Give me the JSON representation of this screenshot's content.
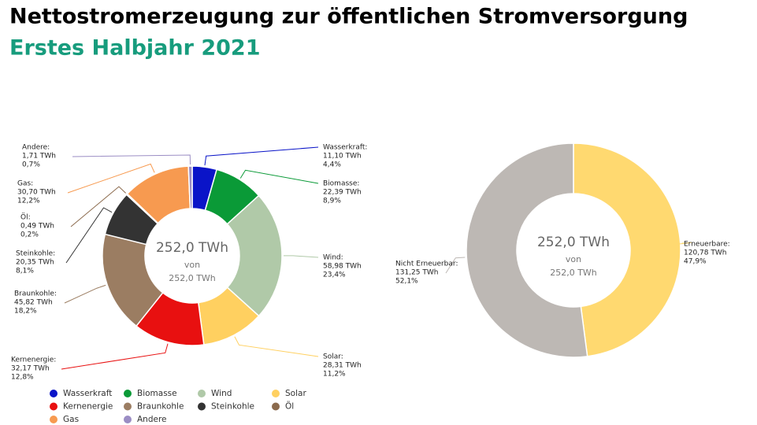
{
  "header": {
    "title": "Nettostromerzeugung zur öffentlichen Stromversorgung",
    "subtitle": "Erstes Halbjahr 2021"
  },
  "chart_data": [
    {
      "type": "donut",
      "categories": [
        "Wasserkraft",
        "Biomasse",
        "Wind",
        "Solar",
        "Kernenergie",
        "Braunkohle",
        "Steinkohle",
        "Öl",
        "Gas",
        "Andere"
      ],
      "callout_labels": [
        "Wasserkraft:",
        "Biomasse:",
        "Wind:",
        "Solar:",
        "Kernenergie:",
        "Braunkohle:",
        "Steinkohle:",
        "Öl:",
        "Gas:",
        "Andere:"
      ],
      "values": [
        11.1,
        22.39,
        58.98,
        28.31,
        32.17,
        45.82,
        20.35,
        0.49,
        30.7,
        1.71
      ],
      "value_labels": [
        "11,10 TWh",
        "22,39 TWh",
        "58,98 TWh",
        "28,31 TWh",
        "32,17 TWh",
        "45,82 TWh",
        "20,35 TWh",
        "0,49 TWh",
        "30,70 TWh",
        "1,71 TWh"
      ],
      "percents": [
        4.4,
        8.9,
        23.4,
        11.2,
        12.8,
        18.2,
        8.1,
        0.2,
        12.2,
        0.7
      ],
      "percent_labels": [
        "4,4%",
        "8,9%",
        "23,4%",
        "11,2%",
        "12,8%",
        "18,2%",
        "8,1%",
        "0,2%",
        "12,2%",
        "0,7%"
      ],
      "colors": [
        "#0a14c8",
        "#0a9a37",
        "#b0c9a8",
        "#ffd060",
        "#e81010",
        "#9b7d62",
        "#333333",
        "#8b6a4d",
        "#f79a50",
        "#9b8dc4"
      ],
      "center_value": "252,0 TWh",
      "center_of": "von",
      "center_total": "252,0 TWh",
      "legend": true
    },
    {
      "type": "donut",
      "categories": [
        "Erneuerbare:",
        "Nicht Erneuerbar:"
      ],
      "values": [
        120.78,
        131.25
      ],
      "value_labels": [
        "120,78 TWh",
        "131,25 TWh"
      ],
      "percents": [
        47.9,
        52.1
      ],
      "percent_labels": [
        "47,9%",
        "52,1%"
      ],
      "colors": [
        "#ffd970",
        "#bdb8b4"
      ],
      "center_value": "252,0 TWh",
      "center_of": "von",
      "center_total": "252,0 TWh",
      "legend": false
    }
  ]
}
